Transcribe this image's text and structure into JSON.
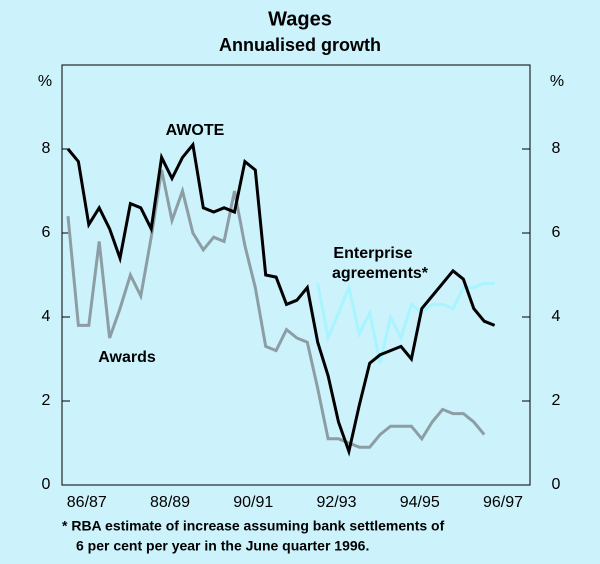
{
  "chart_data": {
    "type": "line",
    "title": "Wages",
    "subtitle": "Annualised growth",
    "y_unit_left": "%",
    "y_unit_right": "%",
    "categories": [
      null,
      null,
      "86/87",
      null,
      null,
      null,
      null,
      null,
      null,
      null,
      "88/89",
      null,
      null,
      null,
      null,
      null,
      null,
      null,
      "90/91",
      null,
      null,
      null,
      null,
      null,
      null,
      null,
      "92/93",
      null,
      null,
      null,
      null,
      null,
      null,
      null,
      "94/95",
      null,
      null,
      null,
      null,
      null,
      null,
      null,
      "96/97"
    ],
    "series": [
      {
        "name": "Awards",
        "color": "#8c9ea3",
        "values": [
          6.4,
          3.8,
          3.8,
          5.8,
          3.5,
          4.2,
          5.0,
          4.5,
          5.9,
          7.5,
          6.3,
          7.0,
          6.0,
          5.6,
          5.9,
          5.8,
          7.0,
          5.7,
          4.7,
          3.3,
          3.2,
          3.7,
          3.5,
          3.4,
          2.3,
          1.1,
          1.1,
          1.0,
          0.9,
          0.9,
          1.2,
          1.4,
          1.4,
          1.4,
          1.1,
          1.5,
          1.8,
          1.7,
          1.7,
          1.5,
          1.2,
          null,
          null
        ]
      },
      {
        "name": "Enterprise agreements*",
        "color": "#a8f4ff",
        "values": [
          null,
          null,
          null,
          null,
          null,
          null,
          null,
          null,
          null,
          null,
          null,
          null,
          null,
          null,
          null,
          null,
          null,
          null,
          null,
          null,
          null,
          null,
          null,
          null,
          4.8,
          3.5,
          4.1,
          4.7,
          3.6,
          4.1,
          2.9,
          4.0,
          3.5,
          4.3,
          4.1,
          4.3,
          4.3,
          4.2,
          4.7,
          4.7,
          4.8,
          4.8,
          null
        ]
      },
      {
        "name": "AWOTE",
        "color": "#000000",
        "values": [
          8.0,
          7.7,
          6.2,
          6.6,
          6.1,
          5.4,
          6.7,
          6.6,
          6.1,
          7.8,
          7.3,
          7.8,
          8.1,
          6.6,
          6.5,
          6.6,
          6.5,
          7.7,
          7.5,
          5.0,
          4.95,
          4.3,
          4.4,
          4.7,
          3.4,
          2.6,
          1.5,
          0.8,
          1.9,
          2.9,
          3.1,
          3.2,
          3.3,
          3.0,
          4.2,
          4.5,
          4.8,
          5.1,
          4.9,
          4.2,
          3.9,
          3.8,
          null
        ]
      }
    ],
    "series_labels": [
      "Awards",
      "Enterprise",
      "agreements*",
      "AWOTE"
    ],
    "ylim": [
      0,
      10
    ],
    "yticks": [
      0,
      2,
      4,
      6,
      8
    ],
    "footnote": [
      "* RBA estimate of increase assuming bank settlements of",
      "6 per cent per year in the June quarter 1996."
    ]
  }
}
